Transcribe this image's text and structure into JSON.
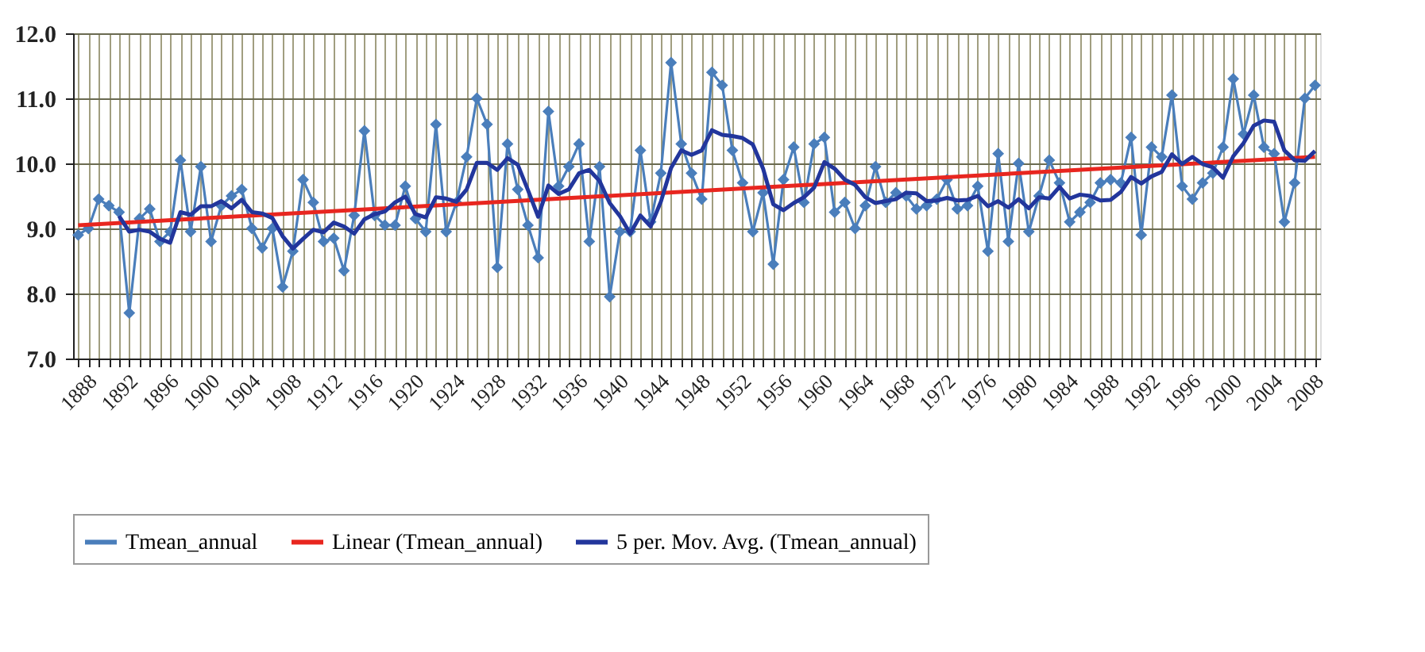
{
  "chart_data": {
    "type": "line",
    "x": [
      1888,
      1889,
      1890,
      1891,
      1892,
      1893,
      1894,
      1895,
      1896,
      1897,
      1898,
      1899,
      1900,
      1901,
      1902,
      1903,
      1904,
      1905,
      1906,
      1907,
      1908,
      1909,
      1910,
      1911,
      1912,
      1913,
      1914,
      1915,
      1916,
      1917,
      1918,
      1919,
      1920,
      1921,
      1922,
      1923,
      1924,
      1925,
      1926,
      1927,
      1928,
      1929,
      1930,
      1931,
      1932,
      1933,
      1934,
      1935,
      1936,
      1937,
      1938,
      1939,
      1940,
      1941,
      1942,
      1943,
      1944,
      1945,
      1946,
      1947,
      1948,
      1949,
      1950,
      1951,
      1952,
      1953,
      1954,
      1955,
      1956,
      1957,
      1958,
      1959,
      1960,
      1961,
      1962,
      1963,
      1964,
      1965,
      1966,
      1967,
      1968,
      1969,
      1970,
      1971,
      1972,
      1973,
      1974,
      1975,
      1976,
      1977,
      1978,
      1979,
      1980,
      1981,
      1982,
      1983,
      1984,
      1985,
      1986,
      1987,
      1988,
      1989,
      1990,
      1991,
      1992,
      1993,
      1994,
      1995,
      1996,
      1997,
      1998,
      1999,
      2000,
      2001,
      2002,
      2003,
      2004,
      2005,
      2006,
      2007,
      2008,
      2009
    ],
    "series": [
      {
        "name": "Tmean_annual",
        "color": "#4a7ebb",
        "marker": "diamond",
        "line_style": "solid",
        "values": [
          8.9,
          9.0,
          9.45,
          9.35,
          9.25,
          7.7,
          9.15,
          9.3,
          8.8,
          8.95,
          10.05,
          8.95,
          9.95,
          8.8,
          9.35,
          9.5,
          9.6,
          9.0,
          8.7,
          9.0,
          8.1,
          8.65,
          9.75,
          9.4,
          8.8,
          8.85,
          8.35,
          9.2,
          10.5,
          9.2,
          9.05,
          9.05,
          9.65,
          9.15,
          8.95,
          10.6,
          8.95,
          9.4,
          10.1,
          11.0,
          10.6,
          8.4,
          10.3,
          9.6,
          9.05,
          8.55,
          10.8,
          9.65,
          9.95,
          10.3,
          8.8,
          9.95,
          7.95,
          8.95,
          8.95,
          10.2,
          9.1,
          9.85,
          11.55,
          10.3,
          9.85,
          9.45,
          11.4,
          11.2,
          10.2,
          9.7,
          8.95,
          9.55,
          8.45,
          9.75,
          10.25,
          9.4,
          10.3,
          10.4,
          9.25,
          9.4,
          9.0,
          9.35,
          9.95,
          9.4,
          9.55,
          9.5,
          9.3,
          9.35,
          9.45,
          9.75,
          9.3,
          9.35,
          9.65,
          8.65,
          10.15,
          8.8,
          10.0,
          8.95,
          9.5,
          10.05,
          9.7,
          9.1,
          9.25,
          9.4,
          9.7,
          9.75,
          9.7,
          10.4,
          8.9,
          10.25,
          10.1,
          11.05,
          9.65,
          9.45,
          9.7,
          9.85,
          10.25,
          11.3,
          10.45,
          11.05,
          10.25,
          10.15,
          9.1,
          9.7,
          11.0,
          11.2
        ]
      },
      {
        "name": "Linear (Tmean_annual)",
        "color": "#e8261f",
        "marker": "none",
        "line_style": "solid",
        "x": [
          1888,
          2009
        ],
        "values": [
          9.05,
          10.1
        ]
      },
      {
        "name": "5 per. Mov. Avg. (Tmean_annual)",
        "color": "#22369c",
        "marker": "none",
        "line_style": "solid",
        "values": [
          null,
          null,
          null,
          null,
          9.19,
          8.95,
          8.98,
          8.95,
          8.84,
          8.78,
          9.25,
          9.21,
          9.34,
          9.34,
          9.42,
          9.31,
          9.44,
          9.25,
          9.23,
          9.16,
          8.88,
          8.69,
          8.84,
          8.98,
          8.94,
          9.09,
          9.03,
          8.92,
          9.14,
          9.22,
          9.26,
          9.4,
          9.49,
          9.22,
          9.17,
          9.48,
          9.46,
          9.41,
          9.6,
          10.01,
          10.01,
          9.9,
          10.08,
          9.98,
          9.59,
          9.18,
          9.66,
          9.53,
          9.6,
          9.85,
          9.9,
          9.73,
          9.39,
          9.19,
          8.92,
          9.2,
          9.03,
          9.41,
          9.93,
          10.2,
          10.13,
          10.2,
          10.51,
          10.44,
          10.42,
          10.39,
          10.29,
          9.92,
          9.37,
          9.28,
          9.39,
          9.48,
          9.63,
          10.02,
          9.92,
          9.75,
          9.67,
          9.48,
          9.39,
          9.42,
          9.45,
          9.55,
          9.54,
          9.42,
          9.43,
          9.47,
          9.43,
          9.44,
          9.5,
          9.34,
          9.42,
          9.32,
          9.45,
          9.31,
          9.48,
          9.46,
          9.64,
          9.46,
          9.52,
          9.5,
          9.43,
          9.44,
          9.56,
          9.79,
          9.69,
          9.8,
          9.87,
          10.14,
          9.99,
          10.1,
          9.99,
          9.94,
          9.78,
          10.11,
          10.31,
          10.58,
          10.66,
          10.64,
          10.2,
          10.05,
          10.04,
          10.19
        ]
      }
    ],
    "xlim": [
      1887.5,
      2009.5
    ],
    "xticks": [
      1888,
      {
        "value": 1889,
        "label": null
      },
      {
        "value": 1890,
        "label": null
      },
      {
        "value": 1891,
        "label": null
      },
      1892,
      {
        "value": 1893,
        "label": null
      },
      {
        "value": 1894,
        "label": null
      },
      {
        "value": 1895,
        "label": null
      },
      1896,
      {
        "value": 1897,
        "label": null
      },
      {
        "value": 1898,
        "label": null
      },
      {
        "value": 1899,
        "label": null
      },
      1900,
      {
        "value": 1901,
        "label": null
      },
      {
        "value": 1902,
        "label": null
      },
      {
        "value": 1903,
        "label": null
      },
      1904,
      {
        "value": 1905,
        "label": null
      },
      {
        "value": 1906,
        "label": null
      },
      {
        "value": 1907,
        "label": null
      },
      1908,
      {
        "value": 1909,
        "label": null
      },
      {
        "value": 1910,
        "label": null
      },
      {
        "value": 1911,
        "label": null
      },
      1912,
      {
        "value": 1913,
        "label": null
      },
      {
        "value": 1914,
        "label": null
      },
      {
        "value": 1915,
        "label": null
      },
      1916,
      {
        "value": 1917,
        "label": null
      },
      {
        "value": 1918,
        "label": null
      },
      {
        "value": 1919,
        "label": null
      },
      1920,
      {
        "value": 1921,
        "label": null
      },
      {
        "value": 1922,
        "label": null
      },
      {
        "value": 1923,
        "label": null
      },
      1924,
      {
        "value": 1925,
        "label": null
      },
      {
        "value": 1926,
        "label": null
      },
      {
        "value": 1927,
        "label": null
      },
      1928,
      {
        "value": 1929,
        "label": null
      },
      {
        "value": 1930,
        "label": null
      },
      {
        "value": 1931,
        "label": null
      },
      1932,
      {
        "value": 1933,
        "label": null
      },
      {
        "value": 1934,
        "label": null
      },
      {
        "value": 1935,
        "label": null
      },
      1936,
      {
        "value": 1937,
        "label": null
      },
      {
        "value": 1938,
        "label": null
      },
      {
        "value": 1939,
        "label": null
      },
      1940,
      {
        "value": 1941,
        "label": null
      },
      {
        "value": 1942,
        "label": null
      },
      {
        "value": 1943,
        "label": null
      },
      1944,
      {
        "value": 1945,
        "label": null
      },
      {
        "value": 1946,
        "label": null
      },
      {
        "value": 1947,
        "label": null
      },
      1948,
      {
        "value": 1949,
        "label": null
      },
      {
        "value": 1950,
        "label": null
      },
      {
        "value": 1951,
        "label": null
      },
      1952,
      {
        "value": 1953,
        "label": null
      },
      {
        "value": 1954,
        "label": null
      },
      {
        "value": 1955,
        "label": null
      },
      1956,
      {
        "value": 1957,
        "label": null
      },
      {
        "value": 1958,
        "label": null
      },
      {
        "value": 1959,
        "label": null
      },
      1960,
      {
        "value": 1961,
        "label": null
      },
      {
        "value": 1962,
        "label": null
      },
      {
        "value": 1963,
        "label": null
      },
      1964,
      {
        "value": 1965,
        "label": null
      },
      {
        "value": 1966,
        "label": null
      },
      {
        "value": 1967,
        "label": null
      },
      1968,
      {
        "value": 1969,
        "label": null
      },
      {
        "value": 1970,
        "label": null
      },
      {
        "value": 1971,
        "label": null
      },
      1972,
      {
        "value": 1973,
        "label": null
      },
      {
        "value": 1974,
        "label": null
      },
      {
        "value": 1975,
        "label": null
      },
      1976,
      {
        "value": 1977,
        "label": null
      },
      {
        "value": 1978,
        "label": null
      },
      {
        "value": 1979,
        "label": null
      },
      1980,
      {
        "value": 1981,
        "label": null
      },
      {
        "value": 1982,
        "label": null
      },
      {
        "value": 1983,
        "label": null
      },
      1984,
      {
        "value": 1985,
        "label": null
      },
      {
        "value": 1986,
        "label": null
      },
      {
        "value": 1987,
        "label": null
      },
      1988,
      {
        "value": 1989,
        "label": null
      },
      {
        "value": 1990,
        "label": null
      },
      {
        "value": 1991,
        "label": null
      },
      1992,
      {
        "value": 1993,
        "label": null
      },
      {
        "value": 1994,
        "label": null
      },
      {
        "value": 1995,
        "label": null
      },
      1996,
      {
        "value": 1997,
        "label": null
      },
      {
        "value": 1998,
        "label": null
      },
      {
        "value": 1999,
        "label": null
      },
      2000,
      {
        "value": 2001,
        "label": null
      },
      {
        "value": 2002,
        "label": null
      },
      {
        "value": 2003,
        "label": null
      },
      2004,
      {
        "value": 2005,
        "label": null
      },
      {
        "value": 2006,
        "label": null
      },
      {
        "value": 2007,
        "label": null
      },
      2008,
      {
        "value": 2009,
        "label": null
      }
    ],
    "ylim": [
      7,
      12
    ],
    "yticks": [
      {
        "value": 7,
        "label": "7.0"
      },
      {
        "value": 8,
        "label": "8.0"
      },
      {
        "value": 9,
        "label": "9.0"
      },
      {
        "value": 10,
        "label": "10.0"
      },
      {
        "value": 11,
        "label": "11.0"
      },
      {
        "value": 12,
        "label": "12.0"
      }
    ],
    "grid": true,
    "legend": "bottom"
  }
}
